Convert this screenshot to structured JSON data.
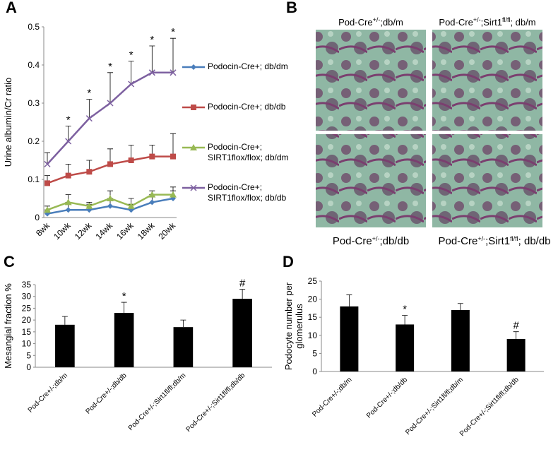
{
  "chart_data": [
    {
      "panel": "A",
      "type": "line",
      "ylabel": "Urine albumin/Cr ratio",
      "categories": [
        "8wk",
        "10wk",
        "12wk",
        "14wk",
        "16wk",
        "18wk",
        "20wk"
      ],
      "series": [
        {
          "name": "Podocin-Cre+; db/dm",
          "color": "#4a7ebb",
          "marker": "diamond",
          "values": [
            0.01,
            0.02,
            0.02,
            0.03,
            0.02,
            0.04,
            0.05
          ],
          "errors": [
            0.01,
            0.02,
            0.015,
            0.02,
            0.015,
            0.02,
            0.02
          ]
        },
        {
          "name": "Podocin-Cre+; db/db",
          "color": "#be4b48",
          "marker": "square",
          "values": [
            0.09,
            0.11,
            0.12,
            0.14,
            0.15,
            0.16,
            0.16
          ],
          "errors": [
            0.02,
            0.03,
            0.03,
            0.04,
            0.04,
            0.03,
            0.06
          ]
        },
        {
          "name": "Podocin-Cre+; SIRT1flox/flox; db/dm",
          "color": "#98b954",
          "marker": "triangle",
          "values": [
            0.02,
            0.04,
            0.03,
            0.05,
            0.03,
            0.06,
            0.06
          ],
          "errors": [
            0.01,
            0.02,
            0.01,
            0.02,
            0.02,
            0.01,
            0.02
          ]
        },
        {
          "name": "Podocin-Cre+; SIRT1flox/flox; db/db",
          "color": "#7d60a0",
          "marker": "x",
          "values": [
            0.14,
            0.2,
            0.26,
            0.3,
            0.35,
            0.38,
            0.38
          ],
          "errors": [
            0.03,
            0.04,
            0.05,
            0.08,
            0.06,
            0.07,
            0.09
          ]
        }
      ],
      "annotations": [
        null,
        "*",
        "*",
        "*",
        "*",
        "*",
        "*"
      ],
      "ylim": [
        0,
        0.5
      ],
      "yticks": [
        0,
        0.1,
        0.2,
        0.3,
        0.4,
        0.5
      ]
    },
    {
      "panel": "C",
      "type": "bar",
      "ylabel": "Mesangial fraction %",
      "categories": [
        "Pod-Cre+/-;db/m",
        "Pod-Cre+/-;db/db",
        "Pod-Cre+/-;Sirt1fl/fl;db/m",
        "Pod-Cre+/-;Sirt1fl/fl;db/db"
      ],
      "values": [
        18,
        23,
        17,
        29
      ],
      "errors": [
        3.5,
        4.5,
        3,
        4
      ],
      "color": "#000000",
      "annotations": [
        null,
        "*",
        null,
        "#"
      ],
      "ylim": [
        0,
        35
      ],
      "yticks": [
        0,
        5,
        10,
        15,
        20,
        25,
        30,
        35
      ]
    },
    {
      "panel": "D",
      "type": "bar",
      "ylabel": "Podocyte number per glomerulus",
      "categories": [
        "Pod-Cre+/-;db/m",
        "Pod-Cre+/-;db/db",
        "Pod-Cre+/-;Sirt1fl/fl;db/m",
        "Pod-Cre+/-;Sirt1fl/fl;db/db"
      ],
      "values": [
        18,
        13,
        17,
        9
      ],
      "errors": [
        3.2,
        2.5,
        1.8,
        2
      ],
      "color": "#000000",
      "annotations": [
        null,
        "*",
        null,
        "#"
      ],
      "ylim": [
        0,
        25
      ],
      "yticks": [
        0,
        5,
        10,
        15,
        20,
        25
      ]
    }
  ],
  "panel_b": {
    "panel": "B",
    "labels": [
      {
        "base": "Pod-Cre",
        "sup": "+/-",
        "rest": ";db/m"
      },
      {
        "base": "Pod-Cre",
        "sup": "+/-",
        "rest": ";Sirt1"
      },
      {
        "base": "Pod-Cre",
        "sup": "+/-",
        "rest": ";db/db"
      },
      {
        "base": "Pod-Cre",
        "sup": "+/-",
        "rest": ";Sirt1"
      }
    ],
    "label_tails": [
      null,
      {
        "sup": "fl/fl",
        "rest": "; db/m"
      },
      null,
      {
        "sup": "fl/fl",
        "rest": "; db/db"
      }
    ]
  }
}
